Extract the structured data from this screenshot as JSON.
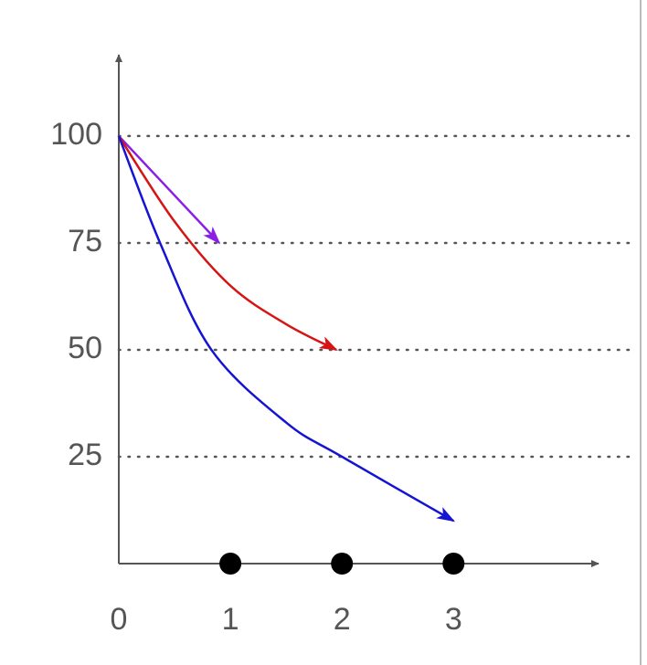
{
  "chart_data": {
    "type": "line",
    "xticks": [
      0,
      1,
      2,
      3
    ],
    "xlim": [
      0,
      4.3
    ],
    "yticks": [
      25,
      50,
      75,
      100
    ],
    "ylim": [
      0,
      119
    ],
    "grid": true,
    "points_x": [
      1,
      2,
      3
    ],
    "series": [
      {
        "color": "#8a1ee6",
        "x": [
          0,
          0.9
        ],
        "values": [
          100,
          75
        ]
      },
      {
        "color": "#d61414",
        "x": [
          0,
          0.5,
          1,
          1.5,
          1.95
        ],
        "values": [
          100,
          80,
          65,
          56,
          50
        ]
      },
      {
        "color": "#1414d2",
        "x": [
          0,
          0.37,
          0.83,
          1.5,
          2,
          3
        ],
        "values": [
          100,
          75,
          50,
          33,
          25,
          10
        ]
      }
    ]
  }
}
